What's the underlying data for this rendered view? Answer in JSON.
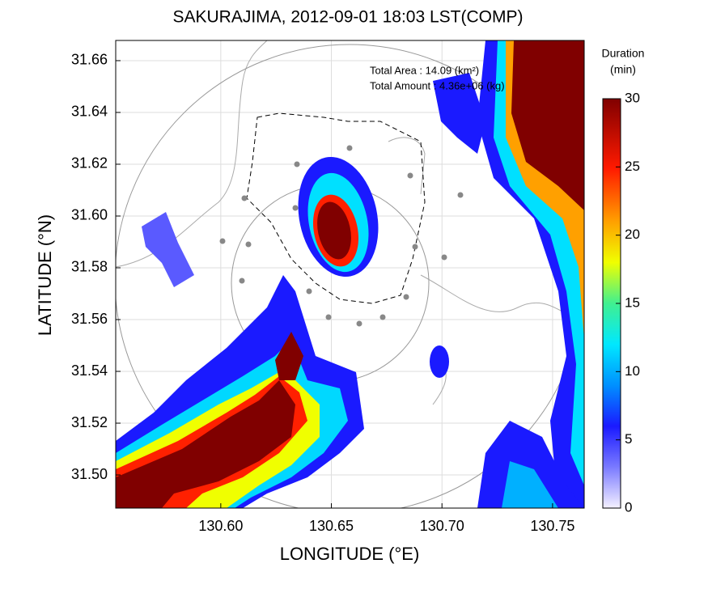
{
  "chart_data": {
    "type": "heatmap",
    "title": "SAKURAJIMA, 2012-09-01 18:03 LST(COMP)",
    "x_label": "LONGITUDE (°E)",
    "y_label": "LATITUDE (°N)",
    "xlim": [
      130.5525,
      130.7643
    ],
    "ylim": [
      31.4872,
      31.6678
    ],
    "xticks": [
      {
        "value": 130.6,
        "label": "130.60"
      },
      {
        "value": 130.65,
        "label": "130.65"
      },
      {
        "value": 130.7,
        "label": "130.70"
      },
      {
        "value": 130.75,
        "label": "130.75"
      }
    ],
    "yticks": [
      31.66,
      31.64,
      31.62,
      {
        "value": 31.6,
        "label": "31.60"
      },
      31.58,
      31.56,
      31.54,
      31.52,
      {
        "value": 31.5,
        "label": "31.50"
      }
    ],
    "grid": true,
    "colorbar": {
      "title": [
        "Duration",
        "(min)"
      ],
      "lim": [
        0,
        30
      ],
      "ticks": [
        0,
        5,
        10,
        15,
        20,
        25,
        30
      ]
    },
    "annotations": [
      "Total Area   : 14.09 (km²)",
      "Total Amount : 4.36e+06 (kg)"
    ]
  }
}
